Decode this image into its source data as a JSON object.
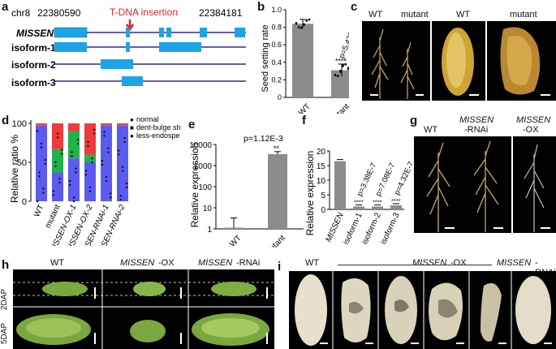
{
  "labels": {
    "a": "a",
    "b": "b",
    "c": "c",
    "d": "d",
    "e": "e",
    "f": "f",
    "g": "g",
    "h": "h",
    "i": "i"
  },
  "panel_a": {
    "chr": "chr8",
    "start": "22380590",
    "end": "22384181",
    "insertion": "T-DNA insertion",
    "tracks": [
      "MISSEN",
      "isoform-1",
      "isoform-2",
      "isoform-3"
    ],
    "colors": {
      "exon": "#1fa3e6",
      "line": "#2b2b9a",
      "insertion": "#e5202a"
    }
  },
  "panel_b": {
    "ylabel": "Seed setting rate",
    "pvalue": "p=5.42E-19",
    "stars": "****",
    "chart_data": {
      "type": "bar",
      "categories": [
        "WT",
        "mutant"
      ],
      "values": [
        0.84,
        0.31
      ],
      "errors": [
        0.05,
        0.07
      ],
      "ylim": [
        0,
        1.0
      ],
      "yticks": [
        "0",
        "0.2",
        "0.4",
        "0.6",
        "0.8",
        "1.0"
      ]
    }
  },
  "panel_c": {
    "labels": [
      "WT",
      "mutant",
      "WT",
      "mutant"
    ]
  },
  "panel_d": {
    "ylabel": "Relative ratio %",
    "legend": [
      "normal",
      "dent-bulge shape",
      "less-endosperm"
    ],
    "chart_data": {
      "type": "bar",
      "stacked": true,
      "categories": [
        "WT",
        "mutant",
        "MISSEN-OX-1",
        "MISSEN-OX-2",
        "MISSEN-RNAi-1",
        "MISSEN-RNAi-2"
      ],
      "series": [
        {
          "name": "normal",
          "values": [
            97,
            37,
            55,
            50,
            97,
            97
          ],
          "color": "#5b5bf0"
        },
        {
          "name": "dent-bulge shape",
          "values": [
            1,
            30,
            35,
            10,
            1,
            1
          ],
          "color": "#22b14c"
        },
        {
          "name": "less-endosperm",
          "values": [
            2,
            33,
            10,
            40,
            2,
            2
          ],
          "color": "#ee3b3b"
        }
      ],
      "ylim": [
        0,
        100
      ],
      "yticks": [
        "0",
        "50",
        "100"
      ]
    }
  },
  "panel_e": {
    "ylabel": "Relative expression",
    "pvalue": "p=1.12E-3",
    "stars": "**",
    "chart_data": {
      "type": "bar",
      "log_scale": true,
      "categories": [
        "WT",
        "mutant"
      ],
      "values": [
        1.1,
        3500
      ],
      "ylim": [
        1,
        10000
      ],
      "yticks": [
        "1",
        "10",
        "100",
        "1000",
        "10000"
      ]
    }
  },
  "panel_f": {
    "ylabel": "Relative expression",
    "pvalues": [
      "p=3.38E-7",
      "p=7.08E-7",
      "p=4.32E-7"
    ],
    "stars": "****",
    "chart_data": {
      "type": "bar",
      "categories": [
        "MISSEN",
        "isoform-1",
        "isoform-2",
        "isoform-3"
      ],
      "values": [
        16.5,
        1.0,
        1.0,
        1.4
      ],
      "ylim": [
        0,
        20
      ],
      "yticks": [
        "0",
        "5",
        "10",
        "15",
        "20"
      ]
    }
  },
  "panel_g": {
    "labels": [
      "WT",
      "MISSEN",
      "-RNAi",
      "MISSEN",
      "-OX"
    ]
  },
  "panel_h": {
    "cols": [
      "WT",
      "MISSEN",
      "-OX",
      "MISSEN",
      "-RNAi"
    ],
    "rows": [
      "2DAP",
      "5DAP"
    ]
  },
  "panel_i": {
    "labels": [
      "WT",
      "MISSEN",
      "-OX",
      "MISSEN",
      "-RNAi"
    ]
  }
}
